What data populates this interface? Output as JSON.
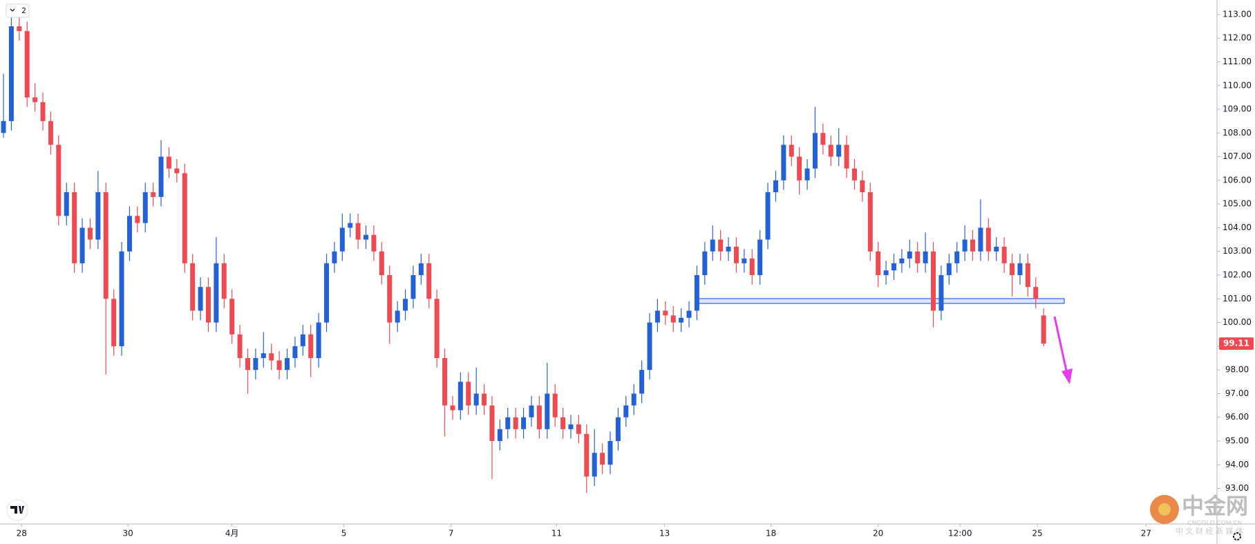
{
  "chart_data": {
    "type": "candlestick",
    "up_color": "#2461d9",
    "down_color": "#ef4a52",
    "ohlc": [
      [
        108.0,
        110.5,
        107.8,
        108.5
      ],
      [
        108.5,
        112.9,
        108.1,
        112.5
      ],
      [
        112.5,
        113.0,
        111.9,
        112.3
      ],
      [
        112.3,
        112.7,
        109.1,
        109.5
      ],
      [
        109.5,
        110.1,
        108.9,
        109.3
      ],
      [
        109.3,
        109.7,
        108.1,
        108.5
      ],
      [
        108.5,
        108.9,
        107.1,
        107.5
      ],
      [
        107.5,
        107.9,
        104.1,
        104.5
      ],
      [
        104.5,
        105.9,
        104.1,
        105.5
      ],
      [
        105.5,
        105.9,
        102.1,
        102.5
      ],
      [
        102.5,
        104.4,
        102.1,
        104
      ],
      [
        104,
        104.4,
        103.1,
        103.5
      ],
      [
        103.5,
        106.4,
        103.1,
        105.5
      ],
      [
        105.5,
        105.9,
        97.8,
        101
      ],
      [
        101,
        101.4,
        98.6,
        99
      ],
      [
        99,
        103.4,
        98.6,
        103
      ],
      [
        103,
        104.9,
        102.6,
        104.5
      ],
      [
        104.5,
        104.9,
        103.8,
        104.2
      ],
      [
        104.2,
        105.9,
        103.8,
        105.5
      ],
      [
        105.5,
        105.9,
        104.9,
        105.3
      ],
      [
        105.3,
        107.7,
        104.9,
        107
      ],
      [
        107,
        107.4,
        106.1,
        106.5
      ],
      [
        106.5,
        106.9,
        105.9,
        106.3
      ],
      [
        106.3,
        106.7,
        102.1,
        102.5
      ],
      [
        102.5,
        102.9,
        100.1,
        100.5
      ],
      [
        100.5,
        101.9,
        100.1,
        101.5
      ],
      [
        101.5,
        101.9,
        99.6,
        100
      ],
      [
        100,
        103.6,
        99.6,
        102.5
      ],
      [
        102.5,
        102.9,
        100.6,
        101
      ],
      [
        101,
        101.4,
        99.1,
        99.5
      ],
      [
        99.5,
        99.9,
        98.1,
        98.5
      ],
      [
        98.5,
        98.9,
        97,
        98
      ],
      [
        98,
        98.9,
        97.6,
        98.5
      ],
      [
        98.5,
        99.6,
        98.1,
        98.7
      ],
      [
        98.7,
        99.1,
        98,
        98.4
      ],
      [
        98.4,
        98.8,
        97.6,
        98
      ],
      [
        98,
        98.9,
        97.6,
        98.5
      ],
      [
        98.5,
        99.4,
        98.1,
        99
      ],
      [
        99,
        99.9,
        98.6,
        99.5
      ],
      [
        99.5,
        99.9,
        97.7,
        98.5
      ],
      [
        98.5,
        100.4,
        98.1,
        100
      ],
      [
        100,
        102.9,
        99.6,
        102.5
      ],
      [
        102.5,
        103.4,
        102.1,
        103
      ],
      [
        103,
        104.6,
        102.6,
        104
      ],
      [
        104,
        104.6,
        103.6,
        104.2
      ],
      [
        104.2,
        104.6,
        103.1,
        103.5
      ],
      [
        103.5,
        104.1,
        103.1,
        103.7
      ],
      [
        103.7,
        104.1,
        102.6,
        103
      ],
      [
        103,
        103.4,
        101.6,
        102
      ],
      [
        102,
        102.4,
        99.1,
        100
      ],
      [
        100,
        100.9,
        99.6,
        100.5
      ],
      [
        100.5,
        101.4,
        100.1,
        101
      ],
      [
        101,
        102.4,
        100.6,
        102
      ],
      [
        102,
        102.9,
        101.6,
        102.5
      ],
      [
        102.5,
        102.9,
        100.6,
        101
      ],
      [
        101,
        101.4,
        98.1,
        98.5
      ],
      [
        98.5,
        98.9,
        95.2,
        96.5
      ],
      [
        96.5,
        96.9,
        95.9,
        96.3
      ],
      [
        96.3,
        97.9,
        95.9,
        97.5
      ],
      [
        97.5,
        97.9,
        96.1,
        96.5
      ],
      [
        96.5,
        98.1,
        96.1,
        97
      ],
      [
        97,
        97.4,
        96.1,
        96.5
      ],
      [
        96.5,
        96.9,
        93.4,
        95
      ],
      [
        95,
        95.9,
        94.6,
        95.5
      ],
      [
        95.5,
        96.4,
        95.1,
        96
      ],
      [
        96,
        96.4,
        95.1,
        95.5
      ],
      [
        95.5,
        96.4,
        95.1,
        96
      ],
      [
        96,
        96.9,
        95.6,
        96.5
      ],
      [
        96.5,
        96.9,
        95.1,
        95.5
      ],
      [
        95.5,
        98.3,
        95.1,
        97
      ],
      [
        97,
        97.4,
        95.6,
        96
      ],
      [
        96,
        96.4,
        95.1,
        95.5
      ],
      [
        95.5,
        96.1,
        95.1,
        95.7
      ],
      [
        95.7,
        96.1,
        94.9,
        95.3
      ],
      [
        95.3,
        95.7,
        92.8,
        93.5
      ],
      [
        93.5,
        95.5,
        93.1,
        94.5
      ],
      [
        94.5,
        94.9,
        93.6,
        94
      ],
      [
        94,
        95.4,
        93.6,
        95
      ],
      [
        95,
        96.4,
        94.6,
        96
      ],
      [
        96,
        96.9,
        95.6,
        96.5
      ],
      [
        96.5,
        97.4,
        96.1,
        97
      ],
      [
        97,
        98.4,
        96.6,
        98
      ],
      [
        98,
        100.4,
        97.6,
        100
      ],
      [
        100,
        101,
        99.6,
        100.5
      ],
      [
        100.5,
        100.9,
        99.9,
        100.3
      ],
      [
        100.3,
        100.7,
        99.6,
        100
      ],
      [
        100,
        100.6,
        99.6,
        100.2
      ],
      [
        100.2,
        100.9,
        99.8,
        100.5
      ],
      [
        100.5,
        102.4,
        100.1,
        102
      ],
      [
        102,
        103.4,
        101.6,
        103
      ],
      [
        103,
        104.1,
        102.6,
        103.5
      ],
      [
        103.5,
        103.9,
        102.6,
        103
      ],
      [
        103,
        103.6,
        102.6,
        103.2
      ],
      [
        103.2,
        103.6,
        102.1,
        102.5
      ],
      [
        102.5,
        103.1,
        102.1,
        102.7
      ],
      [
        102.7,
        103.1,
        101.6,
        102
      ],
      [
        102,
        103.9,
        101.6,
        103.5
      ],
      [
        103.5,
        105.9,
        103.1,
        105.5
      ],
      [
        105.5,
        106.4,
        105.1,
        106
      ],
      [
        106,
        107.9,
        105.6,
        107.5
      ],
      [
        107.5,
        107.9,
        106.6,
        107
      ],
      [
        107,
        107.4,
        105.4,
        106
      ],
      [
        106,
        106.9,
        105.6,
        106.5
      ],
      [
        106.5,
        109.1,
        106.1,
        108
      ],
      [
        108,
        108.4,
        107.1,
        107.5
      ],
      [
        107.5,
        107.9,
        106.6,
        107
      ],
      [
        107,
        108.2,
        106.6,
        107.5
      ],
      [
        107.5,
        107.9,
        106.1,
        106.5
      ],
      [
        106.5,
        106.9,
        105.6,
        106
      ],
      [
        106,
        106.4,
        105.1,
        105.5
      ],
      [
        105.5,
        105.9,
        102.6,
        103
      ],
      [
        103,
        103.4,
        101.5,
        102
      ],
      [
        102,
        102.6,
        101.6,
        102.2
      ],
      [
        102.2,
        102.9,
        101.8,
        102.5
      ],
      [
        102.5,
        103.1,
        102.1,
        102.7
      ],
      [
        102.7,
        103.5,
        102.3,
        103
      ],
      [
        103,
        103.4,
        102.1,
        102.5
      ],
      [
        102.5,
        103.8,
        102.1,
        103
      ],
      [
        103,
        103.4,
        99.8,
        100.5
      ],
      [
        100.5,
        102.4,
        100.1,
        102
      ],
      [
        102,
        102.9,
        101.6,
        102.5
      ],
      [
        102.5,
        103.4,
        102.1,
        103
      ],
      [
        103,
        104.1,
        102.6,
        103.5
      ],
      [
        103.5,
        103.9,
        102.6,
        103
      ],
      [
        103,
        105.2,
        102.6,
        104
      ],
      [
        104,
        104.4,
        102.6,
        103
      ],
      [
        103,
        103.6,
        102.6,
        103.2
      ],
      [
        103.2,
        103.6,
        102.1,
        102.5
      ],
      [
        102.5,
        102.9,
        101.1,
        102
      ],
      [
        102,
        102.9,
        101.6,
        102.5
      ],
      [
        102.5,
        102.9,
        101.1,
        101.5
      ],
      [
        101.5,
        101.9,
        100.6,
        101
      ],
      [
        100.3,
        100.6,
        99.0,
        99.11
      ]
    ],
    "xlim": [
      -0.44,
      154
    ],
    "xticks": [
      {
        "value": 2.3,
        "label": "28"
      },
      {
        "value": 15.8,
        "label": "30"
      },
      {
        "value": 29.0,
        "label": "4月"
      },
      {
        "value": 43.2,
        "label": "5"
      },
      {
        "value": 56.8,
        "label": "7"
      },
      {
        "value": 70.2,
        "label": "11"
      },
      {
        "value": 83.9,
        "label": "13"
      },
      {
        "value": 97.4,
        "label": "18"
      },
      {
        "value": 111.0,
        "label": "20"
      },
      {
        "value": 121.4,
        "label": "12:00"
      },
      {
        "value": 131.2,
        "label": "25"
      },
      {
        "value": 145.0,
        "label": "27"
      }
    ],
    "ylim": [
      91.5,
      113.61
    ],
    "yticks": [
      {
        "value": 93,
        "label": "93.00"
      },
      {
        "value": 94,
        "label": "94.00"
      },
      {
        "value": 95,
        "label": "95.00"
      },
      {
        "value": 96,
        "label": "96.00"
      },
      {
        "value": 97,
        "label": "97.00"
      },
      {
        "value": 98,
        "label": "98.00"
      },
      {
        "value": 99,
        "label": "99.00"
      },
      {
        "value": 100,
        "label": "100.00"
      },
      {
        "value": 101,
        "label": "101.00"
      },
      {
        "value": 102,
        "label": "102.00"
      },
      {
        "value": 103,
        "label": "103.00"
      },
      {
        "value": 104,
        "label": "104.00"
      },
      {
        "value": 105,
        "label": "105.00"
      },
      {
        "value": 106,
        "label": "106.00"
      },
      {
        "value": 107,
        "label": "107.00"
      },
      {
        "value": 108,
        "label": "108.00"
      },
      {
        "value": 109,
        "label": "109.00"
      },
      {
        "value": 110,
        "label": "110.00"
      },
      {
        "value": 111,
        "label": "111.00"
      },
      {
        "value": 112,
        "label": "112.00"
      },
      {
        "value": 113,
        "label": "113.00"
      }
    ],
    "last_price": {
      "value": 99.11,
      "label": "99.11"
    },
    "pane_badge": "2",
    "watermark": {
      "brand": "中金网",
      "domain": "CNGOLD.COM.CN",
      "slogan": "中 文 财 经 新 媒 体"
    }
  }
}
